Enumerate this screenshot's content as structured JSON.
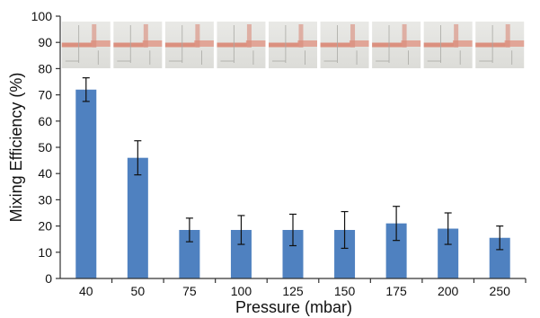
{
  "chart_data": {
    "type": "bar",
    "title": "",
    "xlabel": "Pressure (mbar)",
    "ylabel": "Mixing Efficiency (%)",
    "ylim": [
      0,
      100
    ],
    "yticks": [
      0,
      10,
      20,
      30,
      40,
      50,
      60,
      70,
      80,
      90,
      100
    ],
    "categories": [
      "40",
      "50",
      "75",
      "100",
      "125",
      "150",
      "175",
      "200",
      "250"
    ],
    "values": [
      72,
      46,
      18.5,
      18.5,
      18.5,
      18.5,
      21,
      19,
      15.5
    ],
    "error": [
      4.5,
      6.5,
      4.5,
      5.5,
      6,
      7,
      6.5,
      6,
      4.5
    ],
    "grid": false,
    "legend": "none",
    "bar_color": "#4f81c0",
    "inset_images": "microchannel-photo"
  }
}
